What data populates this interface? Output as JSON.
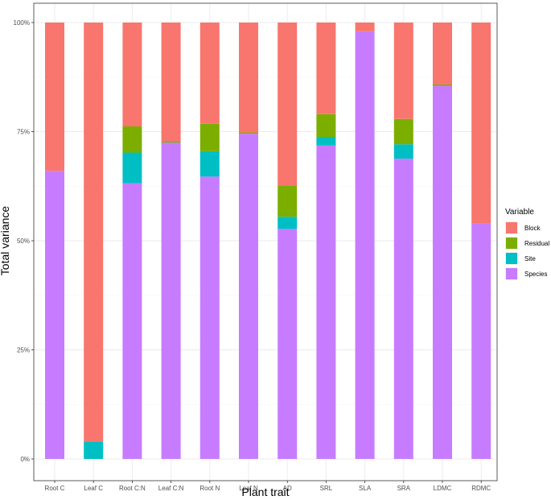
{
  "chart_data": {
    "type": "bar",
    "stacked": true,
    "xlabel": "Plant trait",
    "ylabel": "Total variance",
    "ylim": [
      0,
      1
    ],
    "yticks": [
      0,
      0.25,
      0.5,
      0.75,
      1.0
    ],
    "ytick_labels": [
      "0%",
      "25%",
      "50%",
      "75%",
      "100%"
    ],
    "grid": true,
    "legend_position": "right",
    "categories": [
      "Root C",
      "Leaf C",
      "Root C:N",
      "Leaf C:N",
      "Root N",
      "Leaf N",
      "AD",
      "SRL",
      "SLA",
      "SRA",
      "LDMC",
      "RDMC"
    ],
    "series": [
      {
        "name": "Species",
        "color": "#C77CFF",
        "values": [
          0.66,
          0.0,
          0.632,
          0.725,
          0.647,
          0.745,
          0.527,
          0.718,
          0.98,
          0.688,
          0.855,
          0.539
        ]
      },
      {
        "name": "Site",
        "color": "#00BFC4",
        "values": [
          0.0,
          0.04,
          0.07,
          0.0,
          0.058,
          0.0,
          0.028,
          0.02,
          0.0,
          0.033,
          0.0,
          0.0
        ]
      },
      {
        "name": "Residual",
        "color": "#7CAE00",
        "values": [
          0.0,
          0.0,
          0.06,
          0.003,
          0.063,
          0.003,
          0.072,
          0.052,
          0.0,
          0.058,
          0.003,
          0.0
        ]
      },
      {
        "name": "Block",
        "color": "#F8766D",
        "values": [
          0.34,
          0.96,
          0.238,
          0.272,
          0.232,
          0.252,
          0.373,
          0.21,
          0.02,
          0.221,
          0.142,
          0.461
        ]
      }
    ],
    "legend": {
      "title": "Variable",
      "order": [
        "Block",
        "Residual",
        "Site",
        "Species"
      ]
    }
  }
}
